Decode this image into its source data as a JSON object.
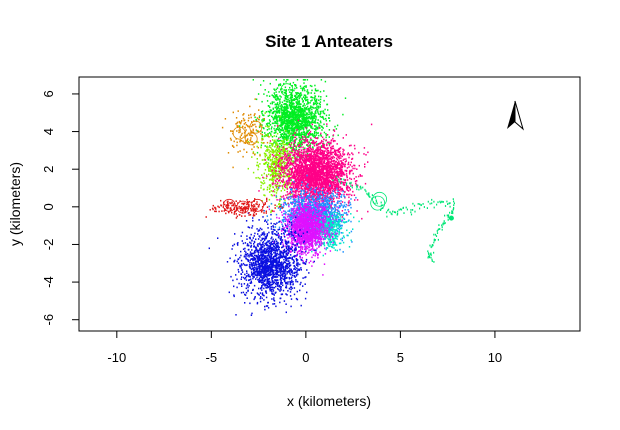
{
  "chart_data": {
    "type": "scatter",
    "title": "Site 1 Anteaters",
    "xlabel": "x (kilometers)",
    "ylabel": "y (kilometers)",
    "xlim": [
      -12,
      14.5
    ],
    "ylim": [
      -6.6,
      6.9
    ],
    "x_ticks": [
      -10,
      -5,
      0,
      5,
      10
    ],
    "y_ticks": [
      -6,
      -4,
      -2,
      0,
      2,
      4,
      6
    ],
    "grid": false,
    "legend": "none",
    "north_arrow": true,
    "series": [
      {
        "color": "#00ee22",
        "cx": -0.6,
        "cy": 4.7,
        "sx": 0.75,
        "sy": 0.9,
        "n": 1600
      },
      {
        "color": "#8af000",
        "cx": -1.6,
        "cy": 2.2,
        "sx": 0.5,
        "sy": 0.9,
        "n": 500
      },
      {
        "color": "#e08a00",
        "cx": -3.1,
        "cy": 4.0,
        "sx": 0.5,
        "sy": 0.6,
        "n": 140
      },
      {
        "color": "#ff0088",
        "cx": 0.5,
        "cy": 1.8,
        "sx": 0.9,
        "sy": 0.85,
        "n": 2600
      },
      {
        "color": "#1e90ff",
        "cx": 0.4,
        "cy": -0.4,
        "sx": 0.8,
        "sy": 0.65,
        "n": 1200
      },
      {
        "color": "#00e6c8",
        "cx": 1.2,
        "cy": -1.2,
        "sx": 0.5,
        "sy": 0.5,
        "n": 300
      },
      {
        "color": "#e010ff",
        "cx": 0.0,
        "cy": -1.1,
        "sx": 0.55,
        "sy": 0.65,
        "n": 1300
      },
      {
        "color": "#0a10e0",
        "cx": -1.9,
        "cy": -3.0,
        "sx": 0.8,
        "sy": 0.9,
        "n": 1500
      },
      {
        "color": "#e01818",
        "cx": -3.4,
        "cy": 0.0,
        "sx": 0.8,
        "sy": 0.2,
        "n": 180
      }
    ],
    "excursion": {
      "color": "#00e676",
      "points": [
        [
          1.5,
          1.6
        ],
        [
          2.5,
          1.2
        ],
        [
          3.2,
          0.8
        ],
        [
          3.8,
          0.2
        ],
        [
          4.5,
          -0.3
        ],
        [
          5.2,
          -0.2
        ],
        [
          6.0,
          0.1
        ],
        [
          7.0,
          0.3
        ],
        [
          7.8,
          0.2
        ],
        [
          7.6,
          -0.5
        ],
        [
          7.2,
          -0.9
        ],
        [
          6.8,
          -1.6
        ],
        [
          6.5,
          -2.4
        ],
        [
          6.6,
          -2.9
        ]
      ]
    }
  }
}
